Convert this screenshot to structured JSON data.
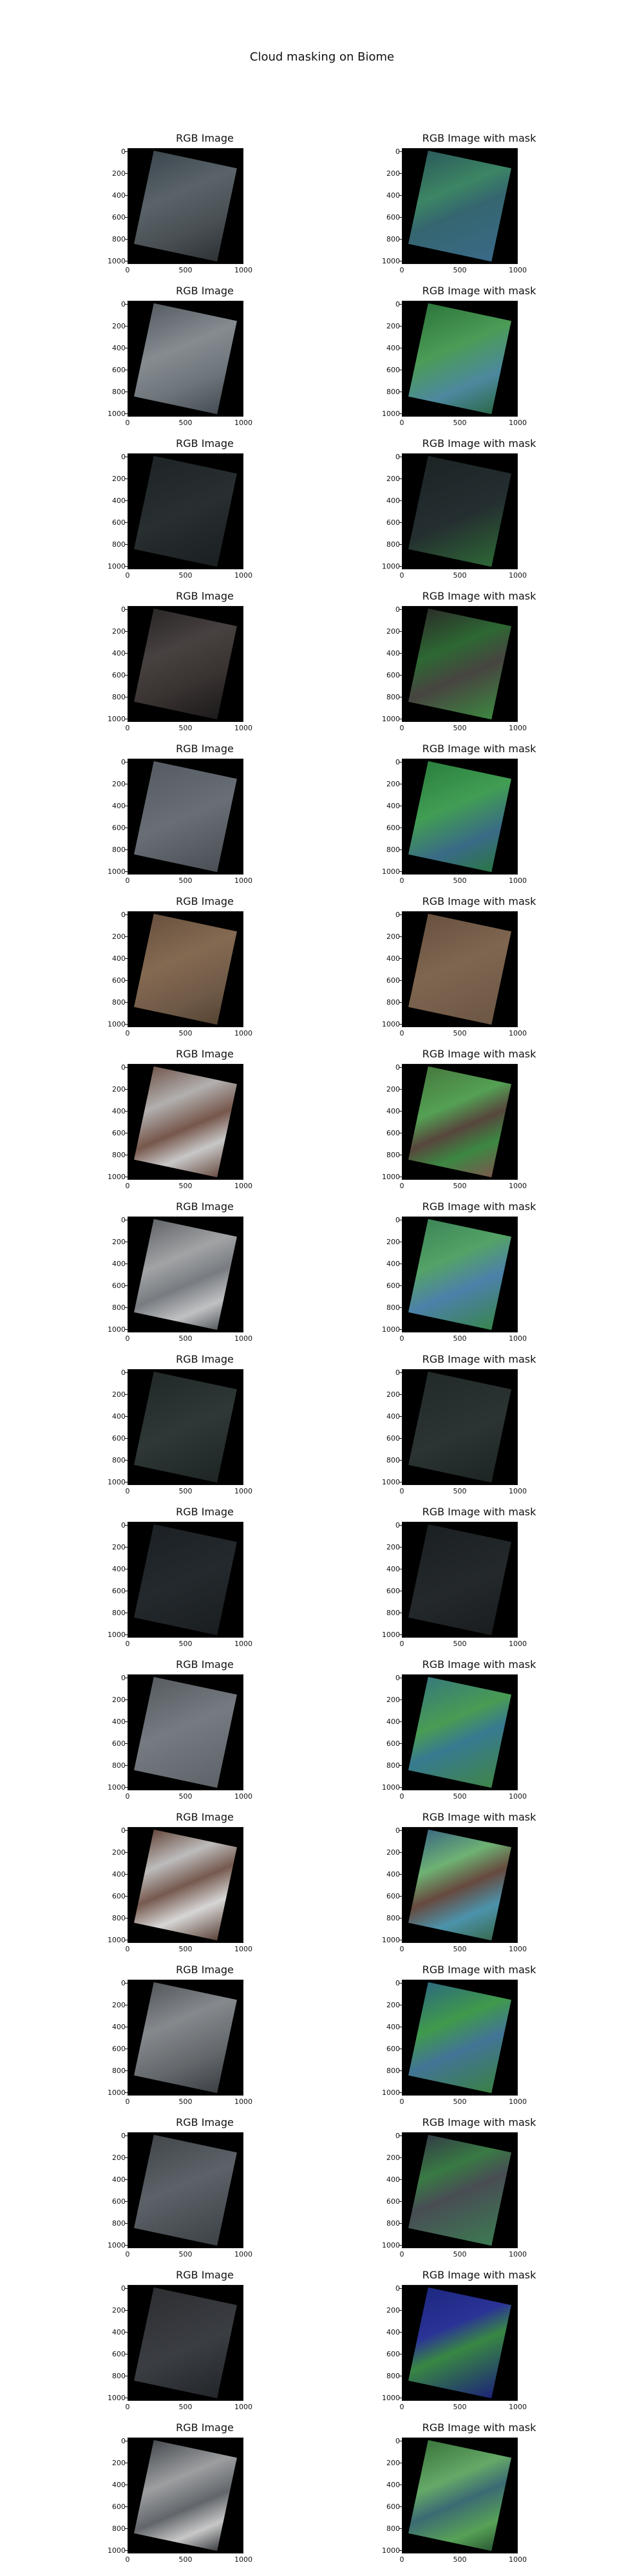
{
  "figure": {
    "title": "Cloud masking on Biome",
    "left_panel_title": "RGB Image",
    "right_panel_title": "RGB Image with mask",
    "y_ticks": [
      "0",
      "200",
      "400",
      "600",
      "800",
      "1000"
    ],
    "x_ticks": [
      "0",
      "500",
      "1000"
    ]
  },
  "rows": [
    {
      "left_style": "linear-gradient(145deg,#3f4a52 0%,#5d676d 38%,#4c5358 70%,#2f3437 100%)",
      "right_style": "linear-gradient(145deg,#2d5e5f 0%,#3f8b68 35%,#376a74 55%,#3c6e8d 100%)"
    },
    {
      "left_style": "linear-gradient(145deg,#5b6268 0%,#8b9297 40%,#727a80 70%,#495057 100%)",
      "right_style": "linear-gradient(145deg,#2f7b3f 0%,#4fa25a 40%,#4f8ea5 72%,#2e6e4e 100%)"
    },
    {
      "left_style": "linear-gradient(145deg,#1f2628 0%,#2a3133 50%,#1b2022 100%)",
      "right_style": "linear-gradient(145deg,#1d2527 0%,#263032 55%,#2f6b38 100%)"
    },
    {
      "left_style": "linear-gradient(145deg,#2d2929 0%,#4a4443 35%,#3c3534 65%,#1d1b1b 100%)",
      "right_style": "linear-gradient(145deg,#2d302b 0%,#2f6c35 35%,#4a4743 60%,#3f8c43 100%)"
    },
    {
      "left_style": "linear-gradient(145deg,#595f67 0%,#6d737a 50%,#4d5359 100%)",
      "right_style": "linear-gradient(145deg,#2c8541 0%,#44a457 40%,#3c6f8c 72%,#2c7b49 100%)"
    },
    {
      "left_style": "linear-gradient(145deg,#6d5642 0%,#8a6e55 40%,#735d4a 75%,#594736 100%)",
      "right_style": "linear-gradient(145deg,#6c5542 0%,#846a54 45%,#705a47 100%)"
    },
    {
      "left_style": "linear-gradient(145deg,#785c52 0%,#b9b7b6 30%,#7b5a4e 55%,#d0d0d0 75%,#6f5349 100%)",
      "right_style": "linear-gradient(145deg,#4a7f41 0%,#57a758 35%,#5b493f 55%,#3e8d45 75%,#7f5c50 100%)"
    },
    {
      "left_style": "linear-gradient(145deg,#676a6e 0%,#a8aaac 35%,#7d8186 58%,#c8c9cb 80%,#5c6166 100%)",
      "right_style": "linear-gradient(145deg,#3f8b5b 0%,#58a96b 35%,#4f86b0 62%,#3a8a52 100%)"
    },
    {
      "left_style": "linear-gradient(145deg,#222b2a 0%,#313a39 50%,#1f2726 100%)",
      "right_style": "linear-gradient(145deg,#232c2b 0%,#2d3635 55%,#1e2625 100%)"
    },
    {
      "left_style": "linear-gradient(145deg,#1d2226 0%,#252b2f 50%,#1b1f22 100%)",
      "right_style": "linear-gradient(145deg,#1c2124 0%,#252a2d 55%,#1a1e21 100%)"
    },
    {
      "left_style": "linear-gradient(145deg,#5b6066 0%,#7a8086 45%,#61676d 100%)",
      "right_style": "linear-gradient(145deg,#3a7f7f 0%,#4ca257 38%,#3a7f96 58%,#418a4b 100%)"
    },
    {
      "left_style": "linear-gradient(145deg,#6b4c40 0%,#c5c4c4 28%,#7a5d52 50%,#e0dfdf 72%,#60473c 100%)",
      "right_style": "linear-gradient(145deg,#3f6f88 0%,#73b978 30%,#6b4c41 52%,#4f99b2 75%,#3c6f55 100%)"
    },
    {
      "left_style": "linear-gradient(145deg,#585c60 0%,#8b8f93 35%,#676c70 70%,#3f4347 100%)",
      "right_style": "linear-gradient(145deg,#2f6f82 0%,#42a04e 35%,#45799c 60%,#3c8648 100%)"
    },
    {
      "left_style": "linear-gradient(145deg,#454a4f 0%,#60666c 45%,#3f454a 100%)",
      "right_style": "linear-gradient(145deg,#36404a 0%,#3b7f46 30%,#4b5058 52%,#3f7f55 100%)"
    },
    {
      "left_style": "linear-gradient(145deg,#2f3135 0%,#3d4045 55%,#24272b 100%)",
      "right_style": "linear-gradient(145deg,#1e2a86 0%,#2c359d 35%,#3b8d46 55%,#1e257c 100%)"
    },
    {
      "left_style": "linear-gradient(145deg,#4b4f54 0%,#a3a5a7 35%,#666a6f 60%,#d0d0d0 80%,#3f4347 100%)",
      "right_style": "linear-gradient(145deg,#3d7b3f 0%,#69b06c 35%,#3e6e78 55%,#5aa85a 80%,#2d5f37 100%)"
    }
  ]
}
